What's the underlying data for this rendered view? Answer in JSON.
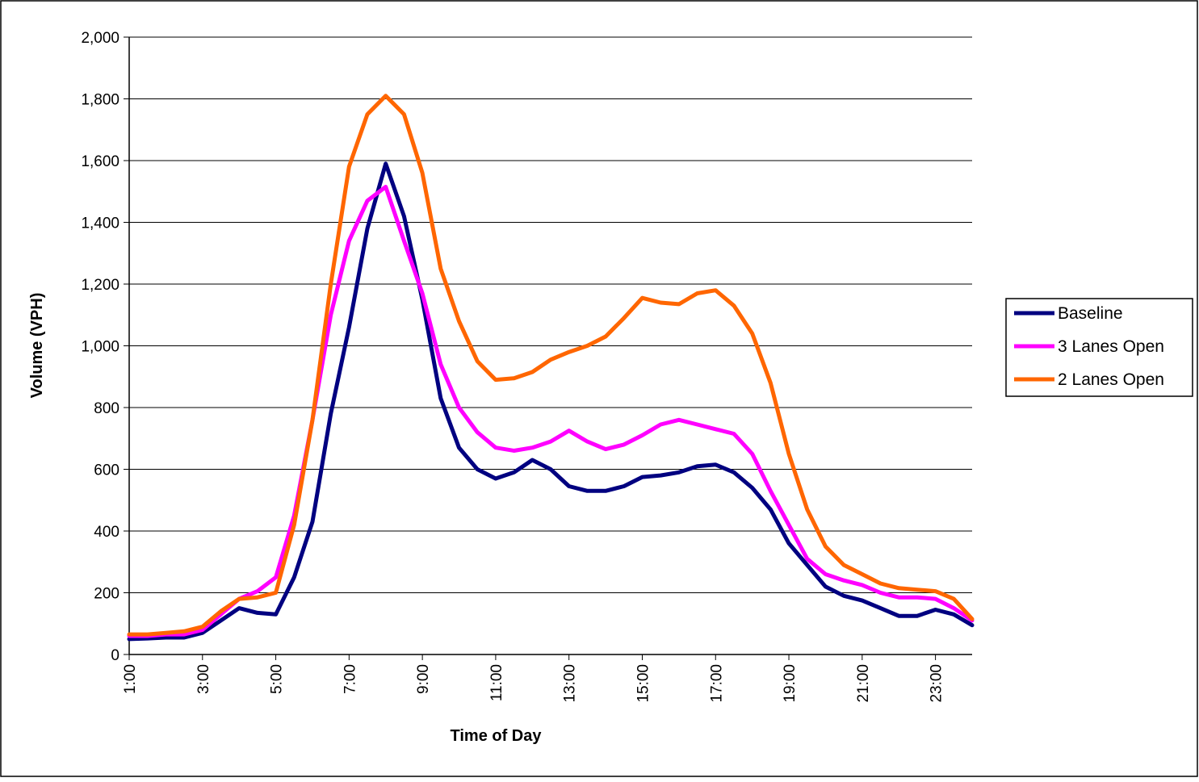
{
  "chart_data": {
    "type": "line",
    "x_label": "Time of Day",
    "y_label": "Volume (VPH)",
    "x": [
      1,
      1.5,
      2,
      2.5,
      3,
      3.5,
      4,
      4.5,
      5,
      5.5,
      6,
      6.5,
      7,
      7.5,
      8,
      8.5,
      9,
      9.5,
      10,
      10.5,
      11,
      11.5,
      12,
      12.5,
      13,
      13.5,
      14,
      14.5,
      15,
      15.5,
      16,
      16.5,
      17,
      17.5,
      18,
      18.5,
      19,
      19.5,
      20,
      20.5,
      21,
      21.5,
      22,
      22.5,
      23,
      23.5,
      24
    ],
    "series": [
      {
        "name": "Baseline",
        "color": "#000080",
        "values": [
          50,
          52,
          55,
          55,
          70,
          110,
          150,
          135,
          130,
          250,
          430,
          780,
          1060,
          1380,
          1590,
          1420,
          1150,
          830,
          670,
          600,
          570,
          590,
          630,
          600,
          545,
          530,
          530,
          545,
          575,
          580,
          590,
          610,
          615,
          590,
          540,
          470,
          360,
          290,
          220,
          190,
          175,
          150,
          125,
          125,
          145,
          130,
          95
        ]
      },
      {
        "name": "3 Lanes Open",
        "color": "#ff00ff",
        "values": [
          60,
          60,
          65,
          65,
          80,
          130,
          180,
          205,
          250,
          450,
          760,
          1100,
          1340,
          1470,
          1515,
          1340,
          1170,
          940,
          800,
          720,
          670,
          660,
          670,
          690,
          725,
          690,
          665,
          680,
          710,
          745,
          760,
          745,
          730,
          715,
          650,
          530,
          420,
          310,
          260,
          240,
          225,
          200,
          185,
          185,
          180,
          150,
          110
        ]
      },
      {
        "name": "2 Lanes Open",
        "color": "#ff6600",
        "values": [
          65,
          65,
          70,
          75,
          90,
          140,
          180,
          185,
          200,
          420,
          760,
          1200,
          1580,
          1750,
          1810,
          1750,
          1560,
          1250,
          1080,
          950,
          890,
          895,
          915,
          955,
          980,
          1000,
          1030,
          1090,
          1155,
          1140,
          1135,
          1170,
          1180,
          1130,
          1040,
          880,
          650,
          470,
          350,
          290,
          260,
          230,
          215,
          210,
          205,
          180,
          115
        ]
      }
    ],
    "xlim": [
      1,
      24
    ],
    "xticks": [
      {
        "value": 1,
        "label": "1:00"
      },
      {
        "value": 3,
        "label": "3:00"
      },
      {
        "value": 5,
        "label": "5:00"
      },
      {
        "value": 7,
        "label": "7:00"
      },
      {
        "value": 9,
        "label": "9:00"
      },
      {
        "value": 11,
        "label": "11:00"
      },
      {
        "value": 13,
        "label": "13:00"
      },
      {
        "value": 15,
        "label": "15:00"
      },
      {
        "value": 17,
        "label": "17:00"
      },
      {
        "value": 19,
        "label": "19:00"
      },
      {
        "value": 21,
        "label": "21:00"
      },
      {
        "value": 23,
        "label": "23:00"
      }
    ],
    "ylim": [
      0,
      2000
    ],
    "yticks": [
      0,
      {
        "value": 200,
        "label": "200"
      },
      {
        "value": 400,
        "label": "400"
      },
      {
        "value": 600,
        "label": "600"
      },
      {
        "value": 800,
        "label": "800"
      },
      {
        "value": 1000,
        "label": "1,000"
      },
      {
        "value": 1200,
        "label": "1,200"
      },
      {
        "value": 1400,
        "label": "1,400"
      },
      {
        "value": 1600,
        "label": "1,600"
      },
      {
        "value": 1800,
        "label": "1,800"
      },
      {
        "value": 2000,
        "label": "2,000"
      }
    ],
    "grid": true,
    "legend": "right"
  }
}
